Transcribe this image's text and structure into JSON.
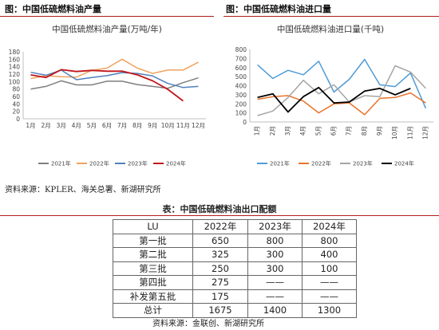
{
  "figures": {
    "left_title": "图：中国低硫燃料油产量",
    "right_title": "图：中国低硫燃料油进口量"
  },
  "chart_data": [
    {
      "type": "line",
      "title": "中国低硫燃料油产量(万吨/年)",
      "categories": [
        "1月",
        "2月",
        "3月",
        "4月",
        "5月",
        "6月",
        "7月",
        "8月",
        "9月",
        "10月",
        "11月",
        "12月"
      ],
      "ylim": [
        0,
        180
      ],
      "yticks": [
        0,
        20,
        40,
        60,
        80,
        100,
        120,
        140,
        160,
        180
      ],
      "grid": false,
      "legend_position": "bottom",
      "series": [
        {
          "name": "2021年",
          "color": "#7f7f7f",
          "values": [
            80,
            87,
            102,
            91,
            91,
            101,
            101,
            92,
            87,
            82,
            97,
            110
          ]
        },
        {
          "name": "2022年",
          "color": "#f0a35e",
          "values": [
            108,
            116,
            113,
            112,
            130,
            136,
            160,
            136,
            122,
            131,
            131,
            152
          ]
        },
        {
          "name": "2023年",
          "color": "#4f81bd",
          "values": [
            125,
            117,
            131,
            105,
            111,
            116,
            124,
            122,
            115,
            95,
            84,
            87
          ]
        },
        {
          "name": "2024年",
          "color": "#c0161b",
          "values": [
            118,
            111,
            132,
            127,
            130,
            128,
            128,
            118,
            102,
            79,
            48,
            null
          ]
        }
      ]
    },
    {
      "type": "line",
      "title": "中国低硫燃料油进口量(千吨)",
      "categories": [
        "1月",
        "2月",
        "3月",
        "4月",
        "5月",
        "6月",
        "7月",
        "8月",
        "9月",
        "10月",
        "11月",
        "12月"
      ],
      "ylim": [
        0,
        800
      ],
      "yticks": [
        0,
        100,
        200,
        300,
        400,
        500,
        600,
        700,
        800
      ],
      "grid": false,
      "legend_position": "bottom",
      "series": [
        {
          "name": "2021年",
          "color": "#4f9cd6",
          "values": [
            630,
            480,
            570,
            520,
            670,
            330,
            470,
            690,
            410,
            390,
            540,
            150
          ]
        },
        {
          "name": "2022年",
          "color": "#e8732a",
          "values": [
            250,
            280,
            290,
            230,
            100,
            200,
            210,
            80,
            260,
            270,
            320,
            210
          ]
        },
        {
          "name": "2023年",
          "color": "#a5a5a5",
          "values": [
            70,
            120,
            270,
            460,
            310,
            410,
            220,
            290,
            280,
            620,
            550,
            370
          ]
        },
        {
          "name": "2024年",
          "color": "#000000",
          "values": [
            270,
            310,
            110,
            280,
            380,
            210,
            220,
            340,
            370,
            300,
            370,
            null
          ]
        }
      ]
    }
  ],
  "source_top": "资料来源：KPLER、海关总署、新湖研究所",
  "table": {
    "title": "表：中国低硫燃料油出口配额",
    "headers": [
      "LU",
      "2022年",
      "2023年",
      "2024年"
    ],
    "rows": [
      [
        "第一批",
        "650",
        "800",
        "800"
      ],
      [
        "第二批",
        "325",
        "300",
        "400"
      ],
      [
        "第三批",
        "250",
        "300",
        "100"
      ],
      [
        "第四批",
        "275",
        "——",
        "——"
      ],
      [
        "补发第五批",
        "175",
        "——",
        "——"
      ],
      [
        "总计",
        "1675",
        "1400",
        "1300"
      ]
    ]
  },
  "source_bottom": "资料来源：金联创、新湖研究所"
}
